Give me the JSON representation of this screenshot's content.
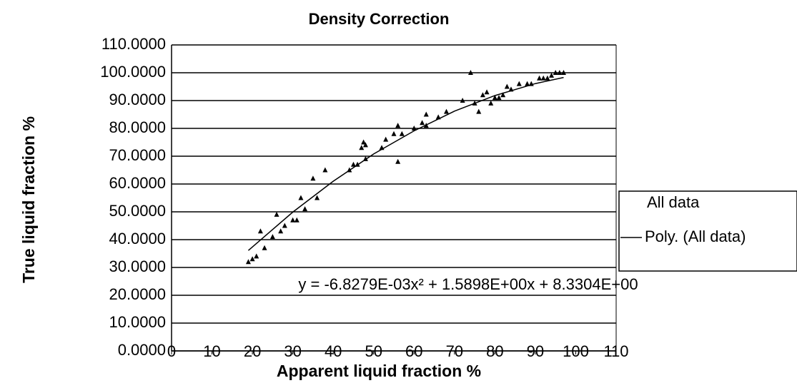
{
  "chart_data": {
    "type": "scatter",
    "title": "Density Correction",
    "x_label": "Apparent liquid fraction %",
    "y_label": "True liquid fraction %",
    "annotation": "y = -6.8279E-03x² + 1.5898E+00x + 8.3304E+00",
    "xlim": [
      0,
      110
    ],
    "xticks": [
      0,
      10,
      20,
      30,
      40,
      50,
      60,
      70,
      80,
      90,
      100,
      110
    ],
    "ylim": [
      0,
      110
    ],
    "yticks": [
      {
        "value": 0,
        "label": "0.0000"
      },
      {
        "value": 10,
        "label": "10.0000"
      },
      {
        "value": 20,
        "label": "20.0000"
      },
      {
        "value": 30,
        "label": "30.0000"
      },
      {
        "value": 40,
        "label": "40.0000"
      },
      {
        "value": 50,
        "label": "50.0000"
      },
      {
        "value": 60,
        "label": "60.0000"
      },
      {
        "value": 70,
        "label": "70.0000"
      },
      {
        "value": 80,
        "label": "80.0000"
      },
      {
        "value": 90,
        "label": "90.0000"
      },
      {
        "value": 100,
        "label": "100.0000"
      },
      {
        "value": 110,
        "label": "110.0000"
      }
    ],
    "grid": true,
    "legend": "right",
    "series": [
      {
        "name": "All data",
        "color": "#000000",
        "kind": "scatter",
        "x": [
          19,
          20,
          21,
          22,
          23,
          25,
          26,
          27,
          28,
          30,
          31,
          32,
          33,
          35,
          36,
          38,
          44,
          45,
          46,
          47,
          47.5,
          48,
          48,
          52,
          53,
          55,
          56,
          57,
          56,
          60,
          62,
          63,
          63,
          66,
          68,
          72,
          74,
          75,
          76,
          77,
          78,
          79,
          80,
          81,
          82,
          83,
          84,
          86,
          88,
          89,
          91,
          92,
          93,
          94,
          95,
          96,
          97
        ],
        "values": [
          32,
          33,
          34,
          43,
          37,
          41,
          49,
          43,
          45,
          47,
          47,
          55,
          51,
          62,
          55,
          65,
          65,
          67,
          67,
          73,
          75,
          74,
          69,
          73,
          76,
          78,
          81,
          78,
          68,
          80,
          82,
          85,
          81,
          84,
          86,
          90,
          100,
          89,
          86,
          92,
          93,
          89,
          91,
          91,
          92,
          95,
          94,
          96,
          96,
          96,
          98,
          98,
          98,
          99,
          100,
          100,
          100
        ]
      },
      {
        "name": "Poly. (All data)",
        "color": "#000000",
        "kind": "line",
        "x": [
          19,
          30,
          40,
          50,
          60,
          70,
          80,
          90,
          97
        ],
        "values": [
          36.1,
          49.9,
          61.0,
          70.8,
          79.1,
          86.2,
          91.8,
          96.1,
          98.3
        ]
      }
    ]
  }
}
